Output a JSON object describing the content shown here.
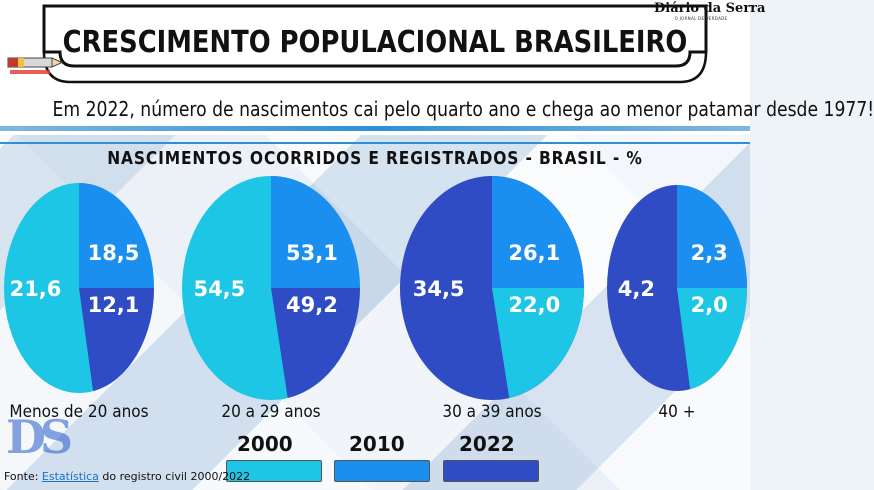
{
  "header": {
    "title": "CRESCIMENTO POPULACIONAL BRASILEIRO",
    "subtitle": "Em 2022, número de nascimentos cai pelo quarto ano e chega ao menor patamar desde 1977!",
    "logo_text": "Diário da Serra",
    "logo_tagline": "O JORNAL DE VERDADE"
  },
  "watermark": "DS",
  "source": {
    "prefix": "Fonte: ",
    "link": "Estatística",
    "rest": " do registro civil  2000/2022"
  },
  "colors": {
    "2000": "#1ec6e6",
    "2010": "#1b8ff0",
    "2022": "#2f4cc4"
  },
  "chart_data": {
    "type": "pie",
    "title": "NASCIMENTOS OCORRIDOS E REGISTRADOS - BRASIL - %",
    "legend": [
      "2000",
      "2010",
      "2022"
    ],
    "legend_placement": "bottom",
    "categories": [
      "Menos de 20 anos",
      "20 a 29 anos",
      "30 a 39 anos",
      "40 +"
    ],
    "series": [
      {
        "name": "2000",
        "values": [
          21.6,
          54.5,
          22.0,
          2.0
        ]
      },
      {
        "name": "2010",
        "values": [
          18.5,
          53.1,
          26.1,
          2.3
        ]
      },
      {
        "name": "2022",
        "values": [
          12.1,
          49.2,
          34.5,
          4.2
        ]
      }
    ],
    "labels": [
      [
        "21,6",
        "18,5",
        "12,1"
      ],
      [
        "54,5",
        "53,1",
        "49,2"
      ],
      [
        "22,0",
        "26,1",
        "34,5"
      ],
      [
        "2,0",
        "2,3",
        "4,2"
      ]
    ]
  }
}
